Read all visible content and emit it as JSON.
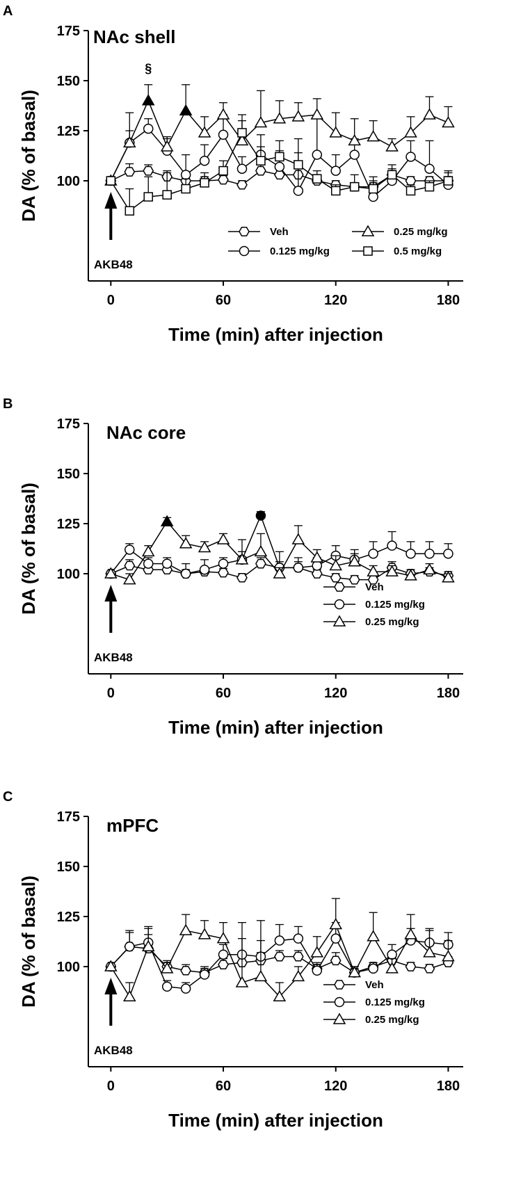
{
  "chart_data": [
    {
      "type": "line",
      "panel_label": "A",
      "title": "NAc shell",
      "xlabel": "Time (min) after injection",
      "ylabel": "DA (% of basal)",
      "xlim": [
        -12,
        188
      ],
      "ylim": [
        50,
        175
      ],
      "xticks": [
        0,
        60,
        120,
        180
      ],
      "yticks": [
        100,
        125,
        150,
        175
      ],
      "annotation_label": "AKB48",
      "significance_marks": [
        {
          "x": 20,
          "y": 154,
          "text": "§"
        }
      ],
      "legend_columns": 2,
      "x": [
        0,
        10,
        20,
        30,
        40,
        50,
        60,
        70,
        80,
        90,
        100,
        110,
        120,
        130,
        140,
        150,
        160,
        170,
        180
      ],
      "series": [
        {
          "name": "Veh",
          "marker": "hexagon",
          "values": [
            100,
            104.5,
            105,
            102,
            100,
            100,
            100.5,
            98,
            105,
            103,
            103,
            100,
            98,
            97,
            97,
            103,
            100,
            100,
            100
          ],
          "errors": [
            0,
            4,
            3,
            2,
            2,
            2,
            2,
            2,
            3,
            3,
            3,
            2,
            2,
            2,
            2,
            3,
            2,
            2,
            2
          ],
          "filled": []
        },
        {
          "name": "0.125 mg/kg",
          "marker": "circle",
          "values": [
            100,
            119,
            126,
            115,
            103,
            110,
            123,
            106,
            113,
            107,
            95,
            113,
            105,
            113,
            92,
            100,
            112,
            106,
            98
          ],
          "errors": [
            0,
            6,
            5,
            6,
            10,
            8,
            10,
            6,
            10,
            8,
            26,
            18,
            8,
            8,
            10,
            5,
            8,
            14,
            6
          ],
          "filled": []
        },
        {
          "name": "0.25 mg/kg",
          "marker": "triangle",
          "values": [
            100,
            119,
            140,
            117,
            135,
            124,
            133,
            120,
            129,
            131,
            132,
            133,
            124,
            120,
            122,
            117,
            124,
            133,
            129
          ],
          "errors": [
            0,
            15,
            8,
            5,
            13,
            8,
            6,
            10,
            16,
            9,
            7,
            8,
            10,
            11,
            8,
            4,
            8,
            9,
            8
          ],
          "filled": [
            2,
            4
          ]
        },
        {
          "name": "0.5 mg/kg",
          "marker": "square",
          "values": [
            100,
            85,
            92,
            93,
            96,
            99,
            105,
            124,
            110,
            112,
            108,
            101,
            95,
            97,
            96,
            103,
            95,
            97,
            100
          ],
          "errors": [
            0,
            11,
            10,
            12,
            5,
            5,
            5,
            9,
            7,
            8,
            6,
            4,
            3,
            6,
            4,
            5,
            3,
            3,
            5
          ],
          "filled": []
        }
      ]
    },
    {
      "type": "line",
      "panel_label": "B",
      "title": "NAc core",
      "xlabel": "Time (min) after injection",
      "ylabel": "DA (% of basal)",
      "xlim": [
        -12,
        188
      ],
      "ylim": [
        50,
        175
      ],
      "xticks": [
        0,
        60,
        120,
        180
      ],
      "yticks": [
        100,
        125,
        150,
        175
      ],
      "annotation_label": "AKB48",
      "significance_marks": [],
      "legend_columns": 1,
      "x": [
        0,
        10,
        20,
        30,
        40,
        50,
        60,
        70,
        80,
        90,
        100,
        110,
        120,
        130,
        140,
        150,
        160,
        170,
        180
      ],
      "series": [
        {
          "name": "Veh",
          "marker": "hexagon",
          "values": [
            100,
            104,
            102,
            102,
            100,
            101,
            100.5,
            98,
            105,
            103,
            103,
            100,
            98,
            97,
            97,
            103,
            100,
            101,
            99
          ],
          "errors": [
            0,
            3,
            2,
            2,
            2,
            2,
            2,
            2,
            3,
            3,
            3,
            2,
            2,
            2,
            2,
            3,
            2,
            2,
            2
          ],
          "filled": []
        },
        {
          "name": "0.125 mg/kg",
          "marker": "circle",
          "values": [
            100,
            112,
            105,
            105,
            100,
            102,
            105,
            107,
            129,
            103,
            103,
            104,
            109,
            107,
            110,
            114,
            110,
            110,
            110
          ],
          "errors": [
            0,
            3,
            3,
            3,
            5,
            5,
            3,
            4,
            2,
            8,
            5,
            4,
            5,
            5,
            6,
            7,
            6,
            6,
            5
          ],
          "filled": [
            8
          ]
        },
        {
          "name": "0.25 mg/kg",
          "marker": "triangle",
          "values": [
            100,
            97,
            111,
            126,
            115,
            113,
            117,
            107,
            111,
            100,
            117,
            108,
            104,
            106,
            101,
            101,
            99,
            102,
            98
          ],
          "errors": [
            0,
            3,
            3,
            2,
            4,
            3,
            3,
            10,
            9,
            3,
            7,
            4,
            5,
            4,
            3,
            3,
            3,
            3,
            2
          ],
          "filled": [
            3
          ]
        }
      ]
    },
    {
      "type": "line",
      "panel_label": "C",
      "title": "mPFC",
      "xlabel": "Time (min) after injection",
      "ylabel": "DA (% of basal)",
      "xlim": [
        -12,
        188
      ],
      "ylim": [
        50,
        175
      ],
      "xticks": [
        0,
        60,
        120,
        180
      ],
      "yticks": [
        100,
        125,
        150,
        175
      ],
      "annotation_label": "AKB48",
      "significance_marks": [],
      "legend_columns": 1,
      "x": [
        0,
        10,
        20,
        30,
        40,
        50,
        60,
        70,
        80,
        90,
        100,
        110,
        120,
        130,
        140,
        150,
        160,
        170,
        180
      ],
      "series": [
        {
          "name": "Veh",
          "marker": "hexagon",
          "values": [
            100,
            110,
            109,
            100,
            98,
            97,
            101,
            102,
            103,
            105,
            105,
            99,
            103,
            97,
            100,
            103,
            100,
            99,
            102
          ],
          "errors": [
            0,
            8,
            7,
            3,
            3,
            3,
            3,
            3,
            4,
            3,
            3,
            3,
            4,
            2,
            2,
            3,
            2,
            2,
            3
          ],
          "filled": []
        },
        {
          "name": "0.125 mg/kg",
          "marker": "circle",
          "values": [
            100,
            110,
            112,
            90,
            89,
            96,
            106,
            106,
            105,
            113,
            114,
            98,
            114,
            97,
            99,
            106,
            113,
            112,
            111
          ],
          "errors": [
            0,
            7,
            7,
            3,
            3,
            3,
            5,
            8,
            8,
            8,
            6,
            3,
            8,
            3,
            3,
            5,
            6,
            6,
            6
          ],
          "filled": []
        },
        {
          "name": "0.25 mg/kg",
          "marker": "triangle",
          "values": [
            100,
            85,
            110,
            99,
            118,
            116,
            114,
            92,
            95,
            85,
            95,
            107,
            121,
            97,
            115,
            99,
            116,
            107,
            105
          ],
          "errors": [
            0,
            7,
            10,
            3,
            8,
            7,
            8,
            30,
            28,
            7,
            5,
            8,
            13,
            3,
            12,
            5,
            10,
            12,
            8
          ],
          "filled": []
        }
      ]
    }
  ]
}
